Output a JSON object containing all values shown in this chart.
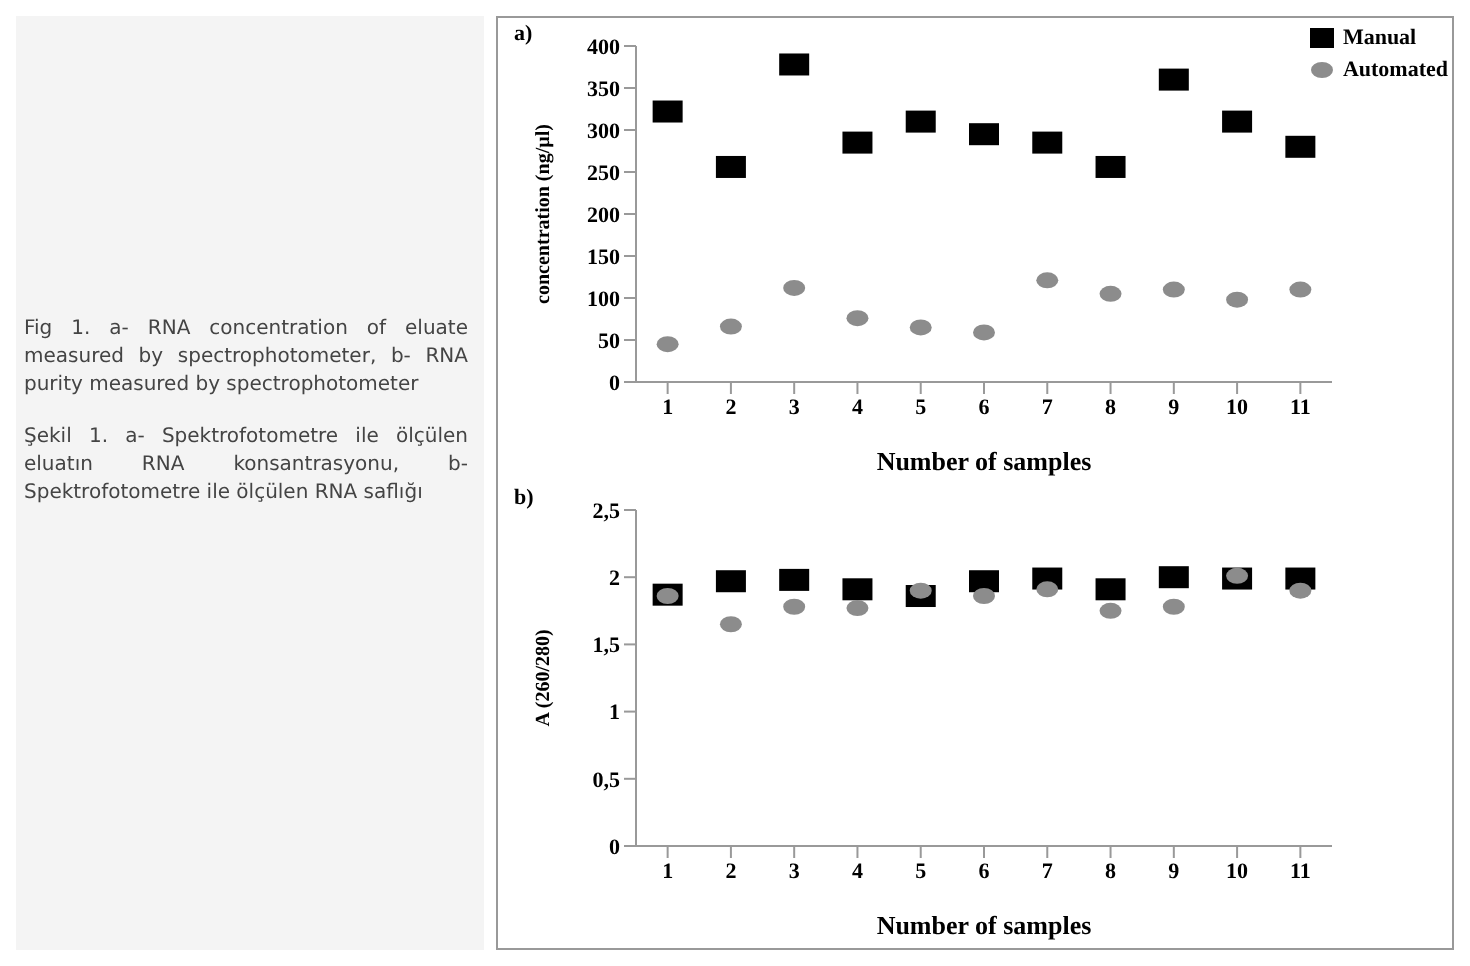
{
  "chart_data": [
    {
      "type": "scatter",
      "title": "a)",
      "xlabel": "Number of samples",
      "ylabel": "concentration (ng/µl)",
      "categories": [
        "1",
        "2",
        "3",
        "4",
        "5",
        "6",
        "7",
        "8",
        "9",
        "10",
        "11"
      ],
      "series": [
        {
          "name": "Manual",
          "color": "#000000",
          "marker": "square",
          "values": [
            322,
            256,
            378,
            285,
            310,
            295,
            285,
            256,
            360,
            310,
            280
          ]
        },
        {
          "name": "Automated",
          "color": "#8c8c8c",
          "marker": "circle",
          "values": [
            45,
            66,
            112,
            76,
            65,
            59,
            121,
            105,
            110,
            98,
            110
          ]
        }
      ],
      "ylim": [
        0,
        400
      ],
      "yticks": [
        0,
        50,
        100,
        150,
        200,
        250,
        300,
        350,
        400
      ],
      "grid": false,
      "legend": "top right",
      "annotations": [
        "Fig 1. a- RNA concentration of eluate measured by spectrophotometer, b- RNA purity measured by spectrophotometer",
        "Şekil 1. a- Spektrofotometre ile ölçülen eluatın RNA konsantrasyonu, b- Spektrofotometre ile ölçülen RNA saflığı"
      ]
    },
    {
      "type": "scatter",
      "title": "b)",
      "xlabel": "Number of samples",
      "ylabel": "A (260/280)",
      "categories": [
        "1",
        "2",
        "3",
        "4",
        "5",
        "6",
        "7",
        "8",
        "9",
        "10",
        "11"
      ],
      "series": [
        {
          "color": "#000000",
          "marker": "square",
          "values": [
            1.87,
            1.97,
            1.98,
            1.91,
            1.86,
            1.97,
            1.99,
            1.91,
            2.0,
            1.99,
            1.99
          ]
        },
        {
          "color": "#8c8c8c",
          "marker": "circle",
          "values": [
            1.86,
            1.65,
            1.78,
            1.77,
            1.9,
            1.86,
            1.91,
            1.75,
            1.78,
            2.01,
            1.9
          ]
        }
      ],
      "ylim": [
        0,
        2.5
      ],
      "yticks": [
        0,
        {
          "value": 0.5,
          "label": "0,5"
        },
        1,
        {
          "value": 1.5,
          "label": "1,5"
        },
        2,
        {
          "value": 2.5,
          "label": "2,5"
        }
      ],
      "grid": false,
      "legend": false
    }
  ]
}
